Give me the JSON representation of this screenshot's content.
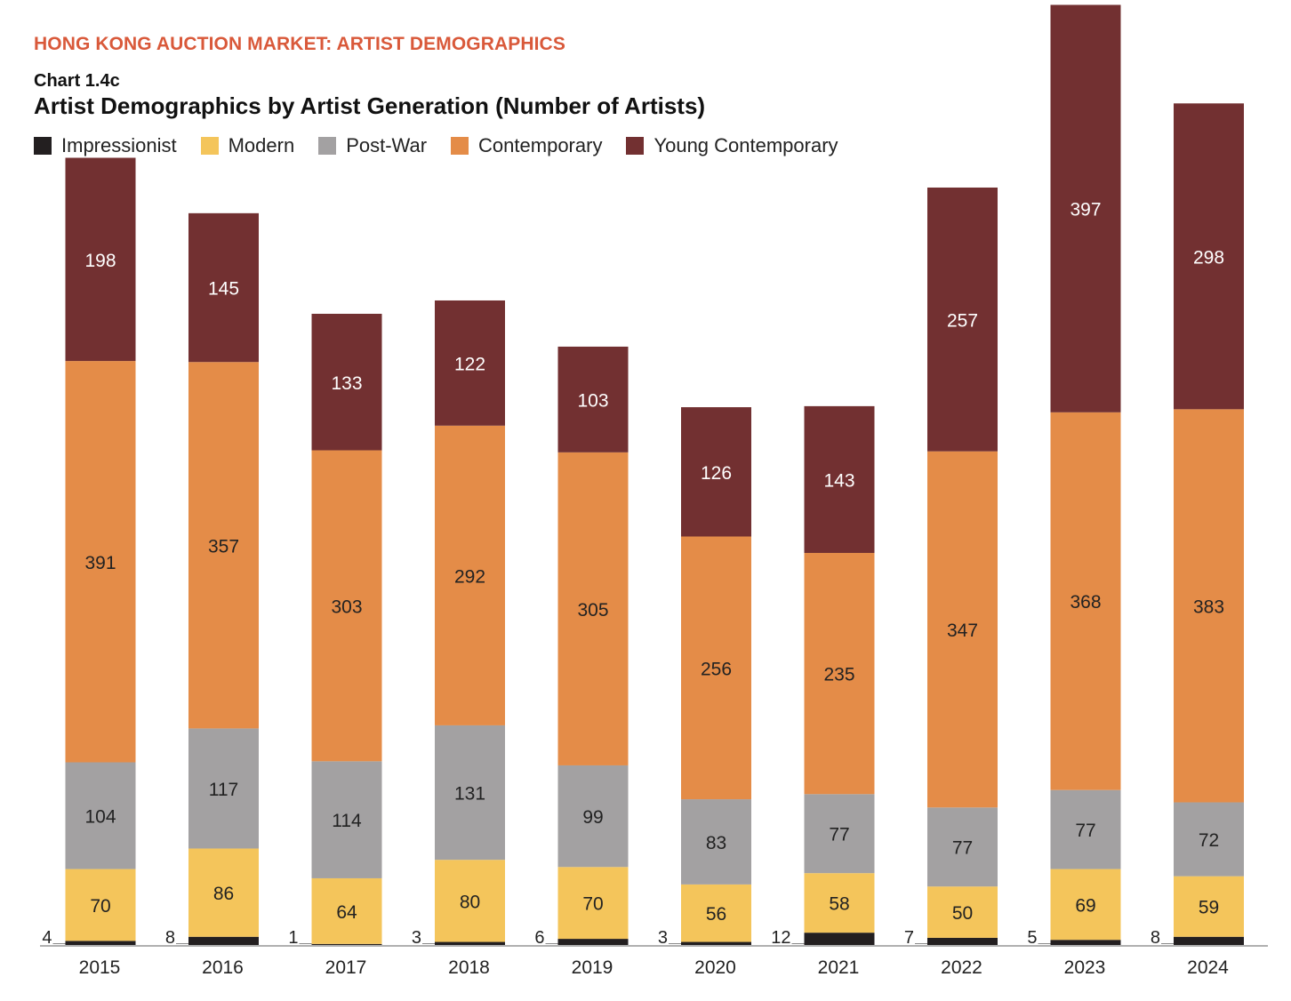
{
  "header": {
    "kicker": "HONG KONG AUCTION MARKET: ARTIST DEMOGRAPHICS",
    "chart_number": "Chart 1.4c",
    "title": "Artist Demographics by Artist Generation (Number of Artists)"
  },
  "chart_data": {
    "type": "bar",
    "stacked": true,
    "title": "Artist Demographics by Artist Generation (Number of Artists)",
    "xlabel": "",
    "ylabel": "",
    "legend_position": "top-left",
    "grid": false,
    "categories": [
      "2015",
      "2016",
      "2017",
      "2018",
      "2019",
      "2020",
      "2021",
      "2022",
      "2023",
      "2024"
    ],
    "series": [
      {
        "name": "Impressionist",
        "color": "#231f20",
        "values": [
          4,
          8,
          1,
          3,
          6,
          3,
          12,
          7,
          5,
          8
        ]
      },
      {
        "name": "Modern",
        "color": "#f4c55b",
        "values": [
          70,
          86,
          64,
          80,
          70,
          56,
          58,
          50,
          69,
          59
        ]
      },
      {
        "name": "Post-War",
        "color": "#a3a1a2",
        "values": [
          104,
          117,
          114,
          131,
          99,
          83,
          77,
          77,
          77,
          72
        ]
      },
      {
        "name": "Contemporary",
        "color": "#e48c48",
        "values": [
          391,
          357,
          303,
          292,
          305,
          256,
          235,
          347,
          368,
          383
        ]
      },
      {
        "name": "Young Contemporary",
        "color": "#723031",
        "values": [
          198,
          145,
          133,
          122,
          103,
          126,
          143,
          257,
          397,
          298
        ]
      }
    ]
  }
}
